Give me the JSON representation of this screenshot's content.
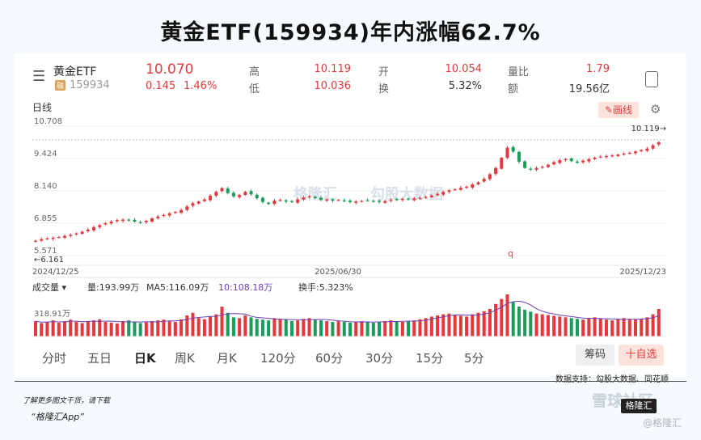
{
  "title": "黄金ETF(159934)年内涨幅62.7%",
  "quote": {
    "name": "黄金ETF",
    "code": "159934",
    "code_badge": "融",
    "price": "10.070",
    "change": "0.145",
    "change_pct": "1.46%",
    "high_label": "高",
    "high": "10.119",
    "low_label": "低",
    "low": "10.036",
    "open_label": "开",
    "open": "10.054",
    "turnover_label": "换",
    "turnover": "5.32%",
    "volratio_label": "量比",
    "volratio": "1.79",
    "amount_label": "额",
    "amount": "19.56亿"
  },
  "chart_header": {
    "period_label": "日线",
    "draw_button": "画线"
  },
  "chart_data": {
    "type": "candlestick",
    "y_ticks": [
      "10.708",
      "9.424",
      "8.140",
      "6.855",
      "5.571"
    ],
    "x_ticks": [
      "2024/12/25",
      "2025/06/30",
      "2025/12/23"
    ],
    "annotations": {
      "max_label": "10.119→",
      "min_label": "←6.161",
      "marker": "q"
    },
    "ylim": [
      5.571,
      10.708
    ],
    "closes": [
      6.16,
      6.22,
      6.25,
      6.28,
      6.31,
      6.35,
      6.4,
      6.45,
      6.52,
      6.6,
      6.7,
      6.78,
      6.86,
      6.92,
      6.98,
      7.0,
      6.96,
      6.92,
      6.88,
      6.95,
      7.05,
      7.12,
      7.18,
      7.25,
      7.3,
      7.38,
      7.52,
      7.65,
      7.72,
      7.8,
      7.95,
      8.1,
      8.25,
      8.05,
      7.92,
      7.98,
      8.1,
      8.0,
      7.85,
      7.7,
      7.62,
      7.75,
      7.78,
      7.72,
      7.7,
      7.8,
      7.88,
      7.92,
      7.85,
      7.78,
      7.8,
      7.75,
      7.78,
      7.74,
      7.7,
      7.72,
      7.74,
      7.76,
      7.73,
      7.7,
      7.74,
      7.78,
      7.8,
      7.82,
      7.8,
      7.84,
      7.86,
      7.9,
      7.96,
      8.02,
      8.1,
      8.16,
      8.2,
      8.26,
      8.3,
      8.4,
      8.48,
      8.62,
      8.8,
      9.05,
      9.45,
      9.85,
      9.7,
      9.3,
      9.05,
      8.98,
      9.05,
      9.1,
      9.18,
      9.28,
      9.36,
      9.4,
      9.32,
      9.26,
      9.34,
      9.4,
      9.46,
      9.5,
      9.52,
      9.55,
      9.58,
      9.62,
      9.65,
      9.7,
      9.76,
      9.82,
      9.95,
      10.07
    ]
  },
  "volume": {
    "label": "成交量",
    "vol": "量:193.99万",
    "ma5": "MA5:116.09万",
    "ma10": "10:108.18万",
    "turnover": "换手:5.323%",
    "axis_label": "318.91万",
    "values": [
      40,
      35,
      38,
      42,
      36,
      40,
      44,
      38,
      35,
      40,
      42,
      45,
      38,
      36,
      34,
      40,
      42,
      38,
      35,
      37,
      40,
      42,
      44,
      40,
      38,
      45,
      55,
      62,
      48,
      45,
      52,
      58,
      78,
      62,
      50,
      48,
      55,
      50,
      46,
      44,
      42,
      48,
      46,
      44,
      40,
      42,
      46,
      48,
      45,
      42,
      40,
      38,
      40,
      38,
      36,
      38,
      40,
      38,
      36,
      38,
      40,
      42,
      40,
      38,
      40,
      42,
      45,
      48,
      52,
      55,
      58,
      60,
      56,
      54,
      52,
      58,
      62,
      66,
      72,
      85,
      98,
      110,
      90,
      78,
      70,
      65,
      60,
      58,
      56,
      54,
      52,
      50,
      48,
      46,
      44,
      48,
      50,
      46,
      44,
      42,
      45,
      48,
      46,
      44,
      46,
      50,
      58,
      72
    ]
  },
  "colors": {
    "up": "#e4393c",
    "down": "#1a9c5b",
    "ma5": "#6c3fb5",
    "ma10": "#f0a020"
  },
  "periods": [
    "分时",
    "五日",
    "日K",
    "周K",
    "月K",
    "120分",
    "60分",
    "30分",
    "15分",
    "5分"
  ],
  "actions": {
    "code_button": "筹码",
    "watch_button": "十自选"
  },
  "support": "数据支持：勾股大数据、同花顺",
  "footer": {
    "line1": "了解更多图文干货，请下载",
    "line2": "“格隆汇App”"
  },
  "watermark": {
    "brand": "格隆汇",
    "sub": "勾股大数据",
    "logo": "格隆汇",
    "site": "雪球社区",
    "handle": "@格隆汇"
  }
}
